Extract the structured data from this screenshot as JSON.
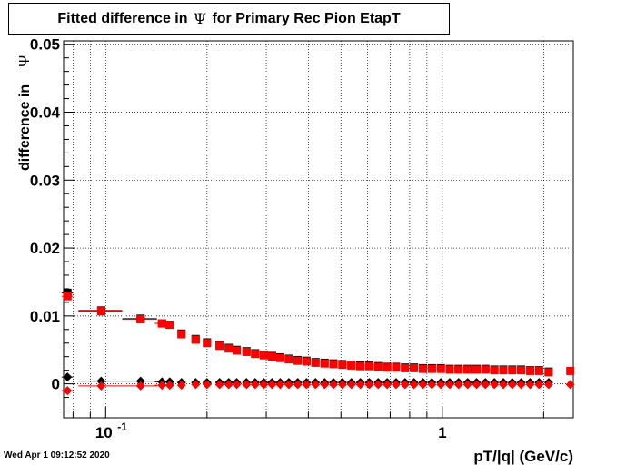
{
  "title_box": {
    "title": "Fitted difference in Ψ for Primary Rec Pion EtapT",
    "title_before": "Fitted difference in",
    "symbol": "Ψ",
    "title_after": "for Primary Rec Pion EtapT"
  },
  "timestamp": "Wed Apr  1 09:12:52 2020",
  "colors": {
    "series_black": "#000000",
    "series_red": "#ff0000",
    "grid": "#000000"
  },
  "chart_data": {
    "type": "scatter",
    "title": "Fitted difference in Ψ for Primary Rec Pion EtapT",
    "xlabel": "pT/|q| (GeV/c)",
    "ylabel": "difference in",
    "ylabel_symbol": "Ψ",
    "x_scale": "log",
    "xlim": [
      0.075,
      2.45
    ],
    "ylim": [
      -0.005,
      0.0505
    ],
    "grid": true,
    "x_ticks": [
      {
        "value": 0.1,
        "label": "10",
        "exp": "-1"
      },
      {
        "value": 1,
        "label": "1",
        "exp": ""
      }
    ],
    "y_ticks": [
      {
        "value": 0,
        "label": "0"
      },
      {
        "value": 0.01,
        "label": "0.01"
      },
      {
        "value": 0.02,
        "label": "0.02"
      },
      {
        "value": 0.03,
        "label": "0.03"
      },
      {
        "value": 0.04,
        "label": "0.04"
      },
      {
        "value": 0.05,
        "label": "0.05"
      }
    ],
    "series": [
      {
        "color": "#000000",
        "marker": "square",
        "x": [
          0.077,
          0.097,
          0.127,
          0.147,
          0.155,
          0.168,
          0.185,
          0.2,
          0.218,
          0.232,
          0.245,
          0.262,
          0.278,
          0.295,
          0.312,
          0.33,
          0.35,
          0.372,
          0.395,
          0.42,
          0.447,
          0.475,
          0.505,
          0.537,
          0.571,
          0.607,
          0.645,
          0.686,
          0.729,
          0.775,
          0.824,
          0.876,
          0.931,
          0.99,
          1.052,
          1.118,
          1.189,
          1.264,
          1.343,
          1.428,
          1.518,
          1.614,
          1.715,
          1.823,
          1.938,
          2.07
        ],
        "y": [
          0.0134,
          0.0108,
          0.0096,
          0.0089,
          0.0087,
          0.0074,
          0.0066,
          0.0061,
          0.0057,
          0.0053,
          0.005,
          0.0048,
          0.0045,
          0.0043,
          0.0041,
          0.0039,
          0.0037,
          0.0035,
          0.0034,
          0.0032,
          0.0031,
          0.003,
          0.0029,
          0.0028,
          0.0027,
          0.0027,
          0.0026,
          0.0025,
          0.0025,
          0.0024,
          0.0024,
          0.0023,
          0.0023,
          0.0023,
          0.0022,
          0.0022,
          0.0022,
          0.0022,
          0.0022,
          0.0021,
          0.0021,
          0.0021,
          0.0021,
          0.002,
          0.002,
          0.0018
        ],
        "xerr_lo": [
          0.074,
          0.083,
          0.112,
          0.14,
          0.15
        ],
        "xerr_hi": [
          0.08,
          0.112,
          0.142,
          0.154,
          0.16
        ]
      },
      {
        "color": "#ff0000",
        "marker": "square",
        "x": [
          0.077,
          0.097,
          0.127,
          0.147,
          0.155,
          0.168,
          0.185,
          0.2,
          0.218,
          0.232,
          0.245,
          0.262,
          0.278,
          0.295,
          0.312,
          0.33,
          0.35,
          0.372,
          0.395,
          0.42,
          0.447,
          0.475,
          0.505,
          0.537,
          0.571,
          0.607,
          0.645,
          0.686,
          0.729,
          0.775,
          0.824,
          0.876,
          0.931,
          0.99,
          1.052,
          1.118,
          1.189,
          1.264,
          1.343,
          1.428,
          1.518,
          1.614,
          1.715,
          1.823,
          1.938,
          2.07,
          2.4
        ],
        "y": [
          0.0129,
          0.0107,
          0.0095,
          0.0089,
          0.0087,
          0.0073,
          0.0065,
          0.006,
          0.0056,
          0.0052,
          0.0049,
          0.0047,
          0.0044,
          0.0042,
          0.004,
          0.0038,
          0.0036,
          0.0034,
          0.0033,
          0.0031,
          0.003,
          0.0029,
          0.0028,
          0.0027,
          0.0026,
          0.0026,
          0.0025,
          0.0024,
          0.0024,
          0.0023,
          0.0023,
          0.0022,
          0.0022,
          0.0022,
          0.0021,
          0.0021,
          0.0021,
          0.0021,
          0.0021,
          0.002,
          0.002,
          0.002,
          0.002,
          0.0019,
          0.0019,
          0.0017,
          0.0019
        ],
        "xerr_lo": [
          0.074,
          0.083,
          0.112,
          0.14,
          0.15
        ],
        "xerr_hi": [
          0.08,
          0.112,
          0.142,
          0.154,
          0.16
        ]
      },
      {
        "color": "#000000",
        "marker": "diamond",
        "x": [
          0.077,
          0.097,
          0.127,
          0.147,
          0.155,
          0.168,
          0.185,
          0.2,
          0.218,
          0.232,
          0.245,
          0.262,
          0.278,
          0.295,
          0.312,
          0.33,
          0.35,
          0.372,
          0.395,
          0.42,
          0.447,
          0.475,
          0.505,
          0.537,
          0.571,
          0.607,
          0.645,
          0.686,
          0.729,
          0.775,
          0.824,
          0.876,
          0.931,
          0.99,
          1.052,
          1.118,
          1.189,
          1.264,
          1.343,
          1.428,
          1.518,
          1.614,
          1.715,
          1.823,
          1.938,
          2.07
        ],
        "y": [
          0.001,
          0.0004,
          0.0004,
          0.0003,
          0.0003,
          0.0002,
          0.0002,
          0.0002,
          0.0002,
          0.0002,
          0.0002,
          0.0002,
          0.0002,
          0.0002,
          0.0002,
          0.0002,
          0.0002,
          0.0002,
          0.0002,
          0.0002,
          0.0002,
          0.0002,
          0.0002,
          0.0002,
          0.0002,
          0.0002,
          0.0002,
          0.0002,
          0.0002,
          0.0002,
          0.0002,
          0.0002,
          0.0002,
          0.0002,
          0.0002,
          0.0002,
          0.0002,
          0.0002,
          0.0002,
          0.0002,
          0.0002,
          0.0002,
          0.0002,
          0.0002,
          0.0002,
          0.0002
        ],
        "xerr_lo": [
          0.074,
          0.083,
          0.112,
          0.14,
          0.15
        ],
        "xerr_hi": [
          0.08,
          0.112,
          0.142,
          0.154,
          0.16
        ]
      },
      {
        "color": "#ff0000",
        "marker": "diamond",
        "x": [
          0.077,
          0.097,
          0.127,
          0.147,
          0.155,
          0.168,
          0.185,
          0.2,
          0.218,
          0.232,
          0.245,
          0.262,
          0.278,
          0.295,
          0.312,
          0.33,
          0.35,
          0.372,
          0.395,
          0.42,
          0.447,
          0.475,
          0.505,
          0.537,
          0.571,
          0.607,
          0.645,
          0.686,
          0.729,
          0.775,
          0.824,
          0.876,
          0.931,
          0.99,
          1.052,
          1.118,
          1.189,
          1.264,
          1.343,
          1.428,
          1.518,
          1.614,
          1.715,
          1.823,
          1.938,
          2.07,
          2.4
        ],
        "y": [
          -0.001,
          -0.0003,
          -0.0003,
          -0.0002,
          -0.0002,
          -0.0002,
          -0.0001,
          -0.0001,
          -0.0001,
          -0.0001,
          -0.0001,
          -0.0001,
          -0.0001,
          -0.0001,
          -0.0001,
          -0.0001,
          -0.0001,
          -0.0001,
          -0.0001,
          -0.0001,
          -0.0001,
          -0.0001,
          -0.0001,
          -0.0001,
          -0.0001,
          -0.0001,
          -0.0001,
          -0.0001,
          -0.0001,
          -0.0001,
          -0.0001,
          -0.0001,
          -0.0001,
          -0.0001,
          -0.0001,
          -0.0001,
          -0.0001,
          -0.0001,
          -0.0001,
          -0.0001,
          -0.0001,
          -0.0001,
          -0.0001,
          -0.0001,
          -0.0001,
          -0.0001,
          -0.0001
        ],
        "xerr_lo": [
          0.074,
          0.083,
          0.112,
          0.14,
          0.15
        ],
        "xerr_hi": [
          0.08,
          0.112,
          0.142,
          0.154,
          0.16
        ]
      }
    ]
  }
}
